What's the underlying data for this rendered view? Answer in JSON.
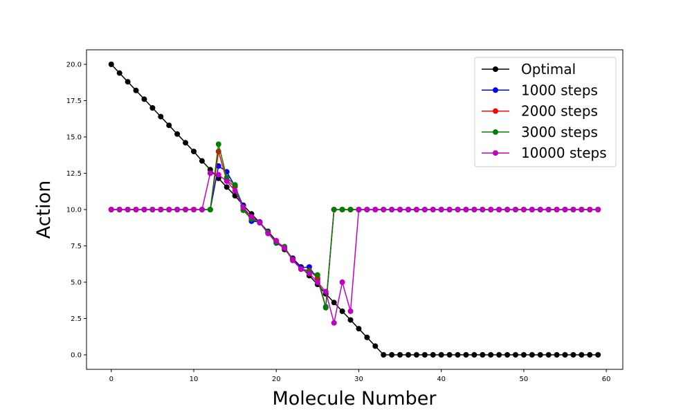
{
  "chart_data": {
    "type": "line",
    "xlabel": "Molecule Number",
    "ylabel": "Action",
    "xlim": [
      -3,
      62
    ],
    "ylim": [
      -1,
      21
    ],
    "xticks": [
      0,
      10,
      20,
      30,
      40,
      50,
      60
    ],
    "yticks": [
      0.0,
      2.5,
      5.0,
      7.5,
      10.0,
      12.5,
      15.0,
      17.5,
      20.0
    ],
    "xtick_labels": [
      "0",
      "10",
      "20",
      "30",
      "40",
      "50",
      "60"
    ],
    "ytick_labels": [
      "0.0",
      "2.5",
      "5.0",
      "7.5",
      "10.0",
      "12.5",
      "15.0",
      "17.5",
      "20.0"
    ],
    "grid": false,
    "legend_position": "top-right",
    "x": [
      0,
      1,
      2,
      3,
      4,
      5,
      6,
      7,
      8,
      9,
      10,
      11,
      12,
      13,
      14,
      15,
      16,
      17,
      18,
      19,
      20,
      21,
      22,
      23,
      24,
      25,
      26,
      27,
      28,
      29,
      30,
      31,
      32,
      33,
      34,
      35,
      36,
      37,
      38,
      39,
      40,
      41,
      42,
      43,
      44,
      45,
      46,
      47,
      48,
      49,
      50,
      51,
      52,
      53,
      54,
      55,
      56,
      57,
      58,
      59
    ],
    "series": [
      {
        "name": "Optimal",
        "color": "#000000",
        "values": [
          20.0,
          19.4,
          18.8,
          18.2,
          17.6,
          17.0,
          16.4,
          15.8,
          15.2,
          14.6,
          14.0,
          13.35,
          12.75,
          12.15,
          11.55,
          10.95,
          10.3,
          9.7,
          9.1,
          8.5,
          7.85,
          7.25,
          6.65,
          6.05,
          5.45,
          4.85,
          4.2,
          3.6,
          3.0,
          2.4,
          1.8,
          1.2,
          0.6,
          0,
          0,
          0,
          0,
          0,
          0,
          0,
          0,
          0,
          0,
          0,
          0,
          0,
          0,
          0,
          0,
          0,
          0,
          0,
          0,
          0,
          0,
          0,
          0,
          0,
          0,
          0
        ]
      },
      {
        "name": "1000 steps",
        "color": "#0000ff",
        "values": [
          10,
          10,
          10,
          10,
          10,
          10,
          10,
          10,
          10,
          10,
          10,
          10,
          10,
          13.0,
          12.6,
          11.6,
          10.2,
          9.2,
          9.15,
          8.4,
          7.7,
          7.35,
          6.6,
          6.0,
          6.05,
          5.2,
          3.3,
          10,
          10,
          10,
          10,
          10,
          10,
          10,
          10,
          10,
          10,
          10,
          10,
          10,
          10,
          10,
          10,
          10,
          10,
          10,
          10,
          10,
          10,
          10,
          10,
          10,
          10,
          10,
          10,
          10,
          10,
          10,
          10,
          10
        ]
      },
      {
        "name": "2000 steps",
        "color": "#ff0000",
        "values": [
          10,
          10,
          10,
          10,
          10,
          10,
          10,
          10,
          10,
          10,
          10,
          10,
          10,
          14.0,
          12.0,
          11.6,
          10.0,
          9.4,
          9.1,
          8.4,
          7.75,
          7.35,
          6.55,
          5.9,
          5.8,
          5.3,
          3.25,
          10,
          10,
          10,
          10,
          10,
          10,
          10,
          10,
          10,
          10,
          10,
          10,
          10,
          10,
          10,
          10,
          10,
          10,
          10,
          10,
          10,
          10,
          10,
          10,
          10,
          10,
          10,
          10,
          10,
          10,
          10,
          10,
          10
        ]
      },
      {
        "name": "3000 steps",
        "color": "#008000",
        "values": [
          10,
          10,
          10,
          10,
          10,
          10,
          10,
          10,
          10,
          10,
          10,
          10,
          10,
          14.5,
          12.2,
          11.7,
          9.95,
          9.35,
          9.1,
          8.45,
          7.75,
          7.45,
          6.5,
          5.9,
          5.75,
          5.5,
          3.25,
          10,
          10,
          10,
          10,
          10,
          10,
          10,
          10,
          10,
          10,
          10,
          10,
          10,
          10,
          10,
          10,
          10,
          10,
          10,
          10,
          10,
          10,
          10,
          10,
          10,
          10,
          10,
          10,
          10,
          10,
          10,
          10,
          10
        ]
      },
      {
        "name": "10000 steps",
        "color": "#bf00bf",
        "values": [
          10,
          10,
          10,
          10,
          10,
          10,
          10,
          10,
          10,
          10,
          10,
          10,
          12.5,
          12.4,
          11.95,
          11.3,
          10.15,
          9.5,
          9.1,
          8.35,
          7.85,
          7.35,
          6.5,
          5.9,
          5.6,
          5.0,
          4.35,
          2.2,
          5.0,
          3.0,
          10,
          10,
          10,
          10,
          10,
          10,
          10,
          10,
          10,
          10,
          10,
          10,
          10,
          10,
          10,
          10,
          10,
          10,
          10,
          10,
          10,
          10,
          10,
          10,
          10,
          10,
          10,
          10,
          10,
          10
        ]
      }
    ]
  }
}
